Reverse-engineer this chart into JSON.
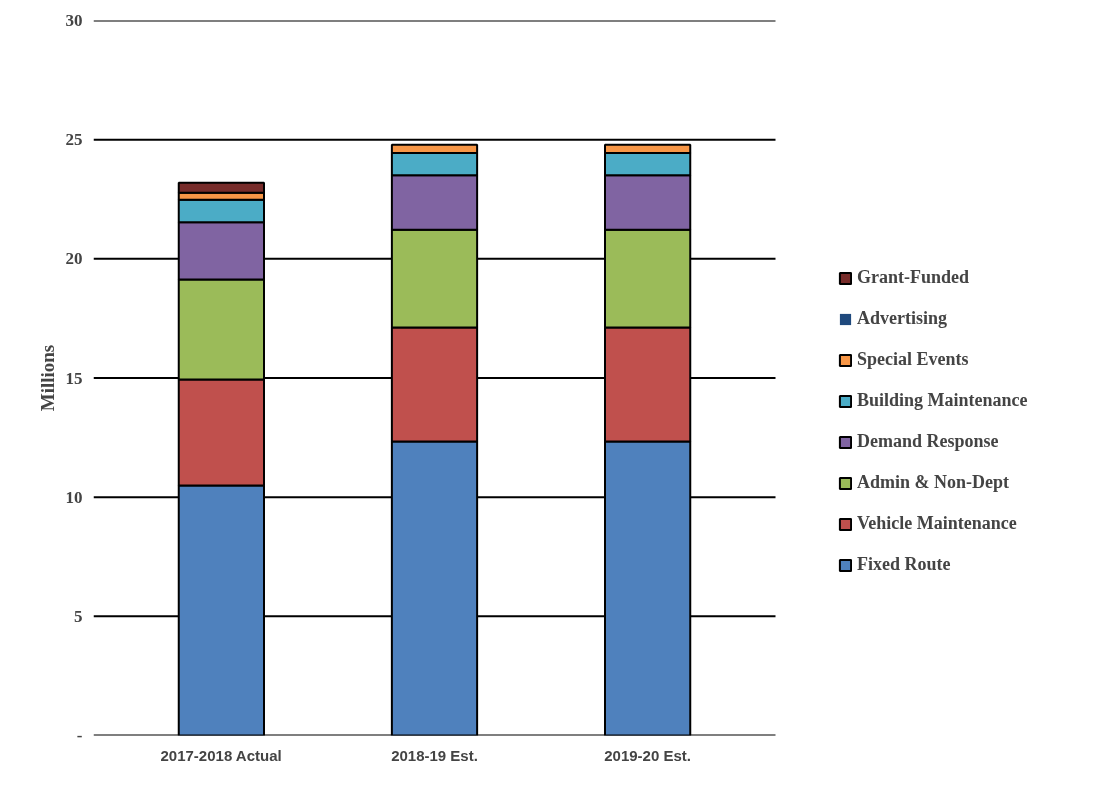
{
  "chart_data": {
    "type": "bar",
    "stacked": true,
    "ylabel": "Millions",
    "categories": [
      "2017-2018 Actual",
      "2018-19 Est.",
      "2019-20 Est."
    ],
    "series": [
      {
        "name": "Fixed Route",
        "color": "#4f81bd",
        "values": [
          10.49,
          12.34,
          12.34
        ]
      },
      {
        "name": "Vehicle Maintenance",
        "color": "#c0504d",
        "values": [
          4.45,
          4.78,
          4.78
        ]
      },
      {
        "name": "Admin & Non-Dept",
        "color": "#9bbb59",
        "values": [
          4.19,
          4.1,
          4.1
        ]
      },
      {
        "name": "Demand Response",
        "color": "#8064a2",
        "values": [
          2.4,
          2.29,
          2.29
        ]
      },
      {
        "name": "Building Maintenance",
        "color": "#4bacc6",
        "values": [
          0.95,
          0.93,
          0.93
        ]
      },
      {
        "name": "Special Events",
        "color": "#f79646",
        "values": [
          0.29,
          0.35,
          0.35
        ]
      },
      {
        "name": "Advertising",
        "color": "#1f497d",
        "values": [
          0,
          0,
          0
        ]
      },
      {
        "name": "Grant-Funded",
        "color": "#772c2a",
        "values": [
          0.42,
          0,
          0
        ]
      }
    ],
    "ylim": [
      0,
      30
    ],
    "yticks": [
      {
        "value": 0,
        "label": "-"
      },
      5,
      10,
      15,
      20,
      25,
      30
    ],
    "grid": "y",
    "legend": "right"
  }
}
